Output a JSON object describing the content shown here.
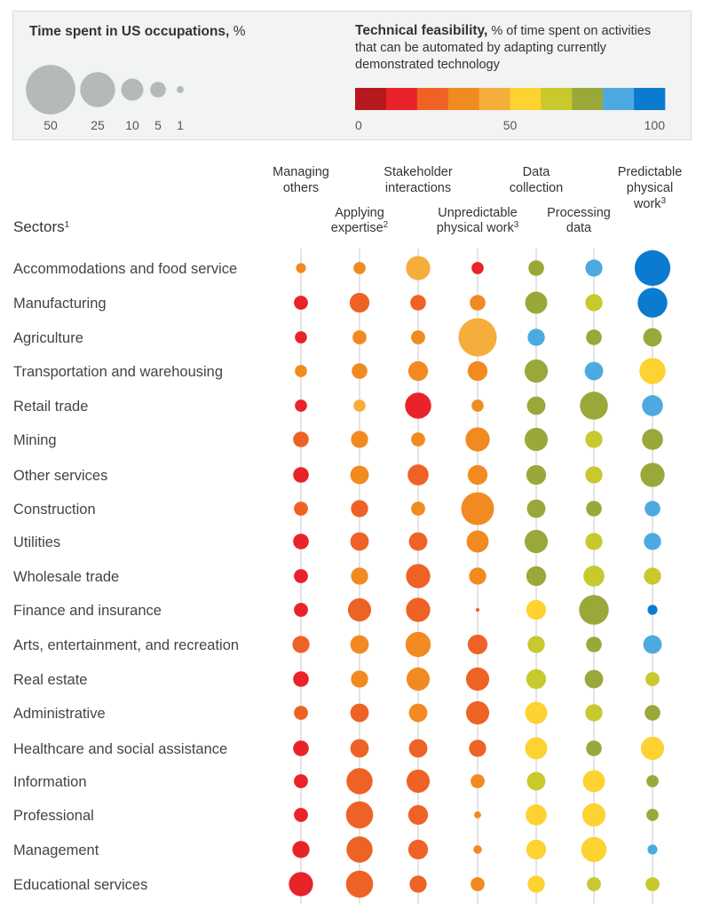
{
  "legend": {
    "size_title": "Time spent in US occupations,",
    "size_unit": "%",
    "size_values": [
      50,
      25,
      10,
      5,
      1
    ],
    "feasibility_title": "Technical feasibility,",
    "feasibility_text": "% of time spent on activities that can be automated by adapting currently demonstrated technology",
    "color_scale": [
      "#b5181e",
      "#e9232a",
      "#ee6325",
      "#f28a22",
      "#f5ae3c",
      "#fdd231",
      "#c7c92d",
      "#9aa83a",
      "#4daae0",
      "#0b7bd0"
    ],
    "color_ticks": [
      "0",
      "50",
      "100"
    ],
    "bubble_color": "#b4bab6"
  },
  "chart_data": {
    "type": "scatter",
    "ylabel": "Sectors",
    "ylabel_sup": "1",
    "activities": [
      {
        "line1": "Managing",
        "line2": "others",
        "sup": ""
      },
      {
        "line1": "Applying",
        "line2": "expertise",
        "sup": "2"
      },
      {
        "line1": "Stakeholder",
        "line2": "interactions",
        "sup": ""
      },
      {
        "line1": "Unpredictable",
        "line2": "physical work",
        "sup": "3"
      },
      {
        "line1": "Data",
        "line2": "collection",
        "sup": ""
      },
      {
        "line1": "Processing",
        "line2": "data",
        "sup": ""
      },
      {
        "line1": "Predictable",
        "line2": "physical",
        "line3": "work",
        "sup": "3"
      }
    ],
    "sectors": [
      {
        "name": "Accommodations and food service",
        "size": [
          2,
          3,
          12,
          3,
          5,
          6,
          26
        ],
        "feasibility": [
          35,
          35,
          45,
          10,
          75,
          85,
          100
        ]
      },
      {
        "name": "Manufacturing",
        "size": [
          4,
          8,
          5,
          5,
          10,
          6,
          18
        ],
        "feasibility": [
          10,
          20,
          20,
          35,
          75,
          65,
          90
        ]
      },
      {
        "name": "Agriculture",
        "size": [
          3,
          4,
          4,
          30,
          6,
          5,
          7
        ],
        "feasibility": [
          10,
          35,
          35,
          45,
          85,
          75,
          75
        ]
      },
      {
        "name": "Transportation and warehousing",
        "size": [
          3,
          5,
          8,
          8,
          11,
          7,
          14
        ],
        "feasibility": [
          30,
          35,
          35,
          35,
          75,
          85,
          55
        ]
      },
      {
        "name": "Retail trade",
        "size": [
          3,
          3,
          14,
          3,
          7,
          16,
          9
        ],
        "feasibility": [
          10,
          45,
          10,
          35,
          75,
          75,
          85
        ]
      },
      {
        "name": "Mining",
        "size": [
          5,
          6,
          4,
          12,
          11,
          6,
          9
        ],
        "feasibility": [
          20,
          30,
          30,
          35,
          75,
          65,
          75
        ]
      },
      {
        "name": "Other services",
        "size": [
          5,
          7,
          9,
          8,
          8,
          6,
          12
        ],
        "feasibility": [
          10,
          30,
          20,
          35,
          75,
          65,
          75
        ]
      },
      {
        "name": "Construction",
        "size": [
          4,
          6,
          4,
          22,
          7,
          5,
          5
        ],
        "feasibility": [
          20,
          20,
          30,
          35,
          75,
          75,
          85
        ]
      },
      {
        "name": "Utilities",
        "size": [
          5,
          7,
          7,
          10,
          11,
          6,
          6
        ],
        "feasibility": [
          10,
          20,
          20,
          30,
          75,
          65,
          85
        ]
      },
      {
        "name": "Wholesale trade",
        "size": [
          4,
          6,
          12,
          6,
          8,
          9,
          6
        ],
        "feasibility": [
          10,
          30,
          20,
          35,
          75,
          65,
          65
        ]
      },
      {
        "name": "Finance and insurance",
        "size": [
          4,
          11,
          12,
          0.3,
          8,
          18,
          2
        ],
        "feasibility": [
          10,
          20,
          20,
          20,
          55,
          75,
          100
        ]
      },
      {
        "name": "Arts, entertainment, and recreation",
        "size": [
          6,
          7,
          13,
          8,
          6,
          5,
          7
        ],
        "feasibility": [
          20,
          30,
          30,
          20,
          65,
          75,
          85
        ]
      },
      {
        "name": "Real estate",
        "size": [
          5,
          6,
          11,
          11,
          8,
          7,
          4
        ],
        "feasibility": [
          10,
          30,
          30,
          20,
          65,
          75,
          65
        ]
      },
      {
        "name": "Administrative",
        "size": [
          4,
          7,
          7,
          11,
          10,
          6,
          5
        ],
        "feasibility": [
          20,
          20,
          30,
          20,
          55,
          65,
          75
        ]
      },
      {
        "name": "Healthcare and social assistance",
        "size": [
          5,
          7,
          7,
          6,
          10,
          5,
          11
        ],
        "feasibility": [
          10,
          20,
          20,
          20,
          55,
          75,
          55
        ]
      },
      {
        "name": "Information",
        "size": [
          4,
          14,
          11,
          4,
          7,
          10,
          3
        ],
        "feasibility": [
          10,
          20,
          20,
          35,
          65,
          55,
          75
        ]
      },
      {
        "name": "Professional",
        "size": [
          4,
          15,
          8,
          1,
          9,
          11,
          3
        ],
        "feasibility": [
          10,
          20,
          20,
          30,
          55,
          55,
          75
        ]
      },
      {
        "name": "Management",
        "size": [
          6,
          14,
          8,
          1.5,
          8,
          13,
          2
        ],
        "feasibility": [
          10,
          20,
          20,
          30,
          55,
          55,
          85
        ]
      },
      {
        "name": "Educational services",
        "size": [
          12,
          15,
          6,
          4,
          6,
          4,
          4
        ],
        "feasibility": [
          10,
          20,
          20,
          30,
          55,
          65,
          65
        ]
      }
    ]
  }
}
